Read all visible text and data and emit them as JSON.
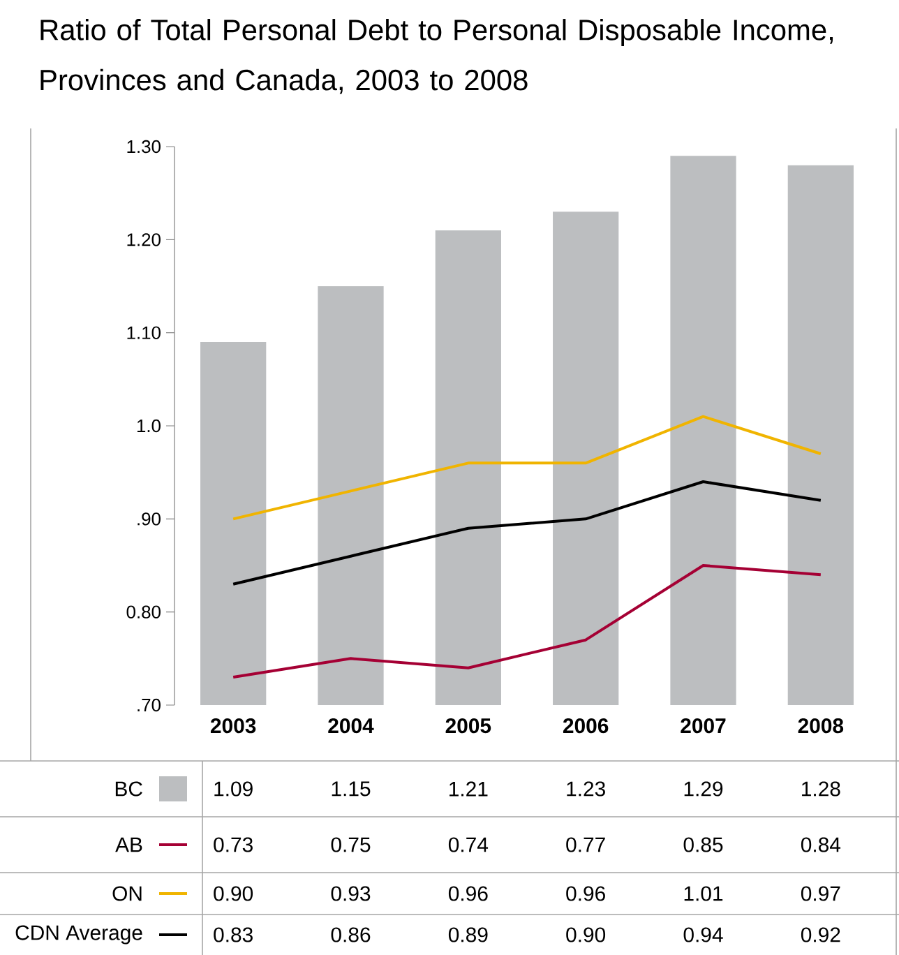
{
  "chart_data": {
    "type": "bar",
    "title": "Ratio of Total Personal Debt to Personal Disposable Income, Provinces and Canada, 2003 to 2008",
    "categories": [
      "2003",
      "2004",
      "2005",
      "2006",
      "2007",
      "2008"
    ],
    "series": [
      {
        "name": "BC",
        "color": "#bcbec0",
        "values": [
          1.09,
          1.15,
          1.21,
          1.23,
          1.29,
          1.28
        ],
        "value_labels": [
          "1.09",
          "1.15",
          "1.21",
          "1.23",
          "1.29",
          "1.28"
        ]
      },
      {
        "name": "AB",
        "type": "line",
        "color": "#a50034",
        "values": [
          0.73,
          0.75,
          0.74,
          0.77,
          0.85,
          0.84
        ],
        "value_labels": [
          "0.73",
          "0.75",
          "0.74",
          "0.77",
          "0.85",
          "0.84"
        ]
      },
      {
        "name": "ON",
        "type": "line",
        "color": "#f0b400",
        "values": [
          0.9,
          0.93,
          0.96,
          0.96,
          1.01,
          0.97
        ],
        "value_labels": [
          "0.90",
          "0.93",
          "0.96",
          "0.96",
          "1.01",
          "0.97"
        ]
      },
      {
        "name": "CDN Average",
        "type": "line",
        "color": "#000000",
        "values": [
          0.83,
          0.86,
          0.89,
          0.9,
          0.94,
          0.92
        ],
        "value_labels": [
          "0.83",
          "0.86",
          "0.89",
          "0.90",
          "0.94",
          "0.92"
        ]
      }
    ],
    "ylim": [
      0.7,
      1.3
    ],
    "yticks": [
      {
        "value": 0.7,
        "label": ".70"
      },
      {
        "value": 0.8,
        "label": "0.80"
      },
      {
        "value": 0.9,
        "label": ".90"
      },
      {
        "value": 1.0,
        "label": "1.0"
      },
      {
        "value": 1.1,
        "label": "1.10"
      },
      {
        "value": 1.2,
        "label": "1.20"
      },
      {
        "value": 1.3,
        "label": "1.30"
      }
    ],
    "legend": "bottom"
  }
}
